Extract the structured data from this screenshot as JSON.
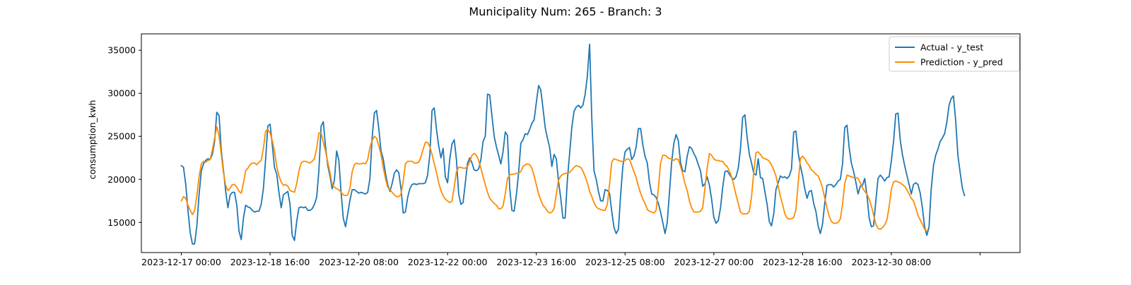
{
  "chart_data": {
    "type": "line",
    "title": "Municipality Num: 265 - Branch: 3",
    "xlabel": "",
    "ylabel": "consumption_kwh",
    "x_start": "2023-12-17 00:00",
    "x_step_hours": 2,
    "x_tick_labels": [
      "2023-12-17 00:00",
      "2023-12-18 16:00",
      "2023-12-20 08:00",
      "2023-12-22 00:00",
      "2023-12-23 16:00",
      "2023-12-25 08:00",
      "2023-12-27 00:00",
      "2023-12-28 16:00",
      "2023-12-30 08:00",
      ""
    ],
    "x_tick_index": [
      0,
      20,
      40,
      60,
      80,
      100,
      120,
      140,
      160,
      180
    ],
    "y_ticks": [
      15000,
      20000,
      25000,
      30000,
      35000
    ],
    "ylim": [
      11500,
      36900
    ],
    "xlim_index": [
      -9,
      189
    ],
    "grid": false,
    "legend_position": "upper right",
    "series": [
      {
        "name": "Actual - y_test",
        "color": "#1f77b4",
        "values": [
          21600,
          21400,
          19400,
          16400,
          13800,
          12500,
          12500,
          14600,
          18200,
          21000,
          21800,
          22200,
          22400,
          22300,
          22900,
          24400,
          27800,
          27400,
          23400,
          21100,
          18600,
          16700,
          18200,
          18500,
          18500,
          17000,
          14000,
          13000,
          15500,
          17000,
          16800,
          16700,
          16400,
          16200,
          16300,
          16300,
          17100,
          18900,
          22400,
          26200,
          26400,
          24000,
          21400,
          20600,
          18500,
          16700,
          18200,
          18400,
          18600,
          17100,
          13500,
          12900,
          15100,
          16700,
          16800,
          16700,
          16800,
          16400,
          16400,
          16600,
          17100,
          17900,
          21000,
          26200,
          26700,
          23800,
          21600,
          20400,
          18900,
          19900,
          23300,
          22200,
          18500,
          15500,
          14500,
          16000,
          17600,
          18800,
          18800,
          18600,
          18400,
          18500,
          18400,
          18300,
          18500,
          20100,
          24800,
          27700,
          28000,
          25900,
          23300,
          22400,
          20700,
          19400,
          18600,
          19500,
          20700,
          21100,
          20800,
          18900,
          16100,
          16200,
          17900,
          18900,
          19400,
          19500,
          19400,
          19500,
          19500,
          19500,
          19600,
          20500,
          22900,
          28000,
          28300,
          25800,
          23900,
          22500,
          23600,
          20300,
          19600,
          22400,
          24100,
          24600,
          22300,
          18300,
          17100,
          17300,
          19600,
          21900,
          22500,
          21900,
          21100,
          21000,
          21200,
          22300,
          24400,
          25000,
          29900,
          29800,
          27400,
          25000,
          23800,
          22800,
          21800,
          23200,
          25500,
          25100,
          19000,
          16400,
          16300,
          18200,
          20700,
          24200,
          24600,
          25300,
          25200,
          25800,
          26500,
          26900,
          28900,
          30900,
          30400,
          28300,
          26000,
          24800,
          23700,
          21500,
          22900,
          22400,
          19800,
          17800,
          15500,
          15500,
          20000,
          23000,
          26000,
          27900,
          28400,
          28600,
          28300,
          28600,
          29900,
          32000,
          35700,
          27100,
          21000,
          20000,
          18600,
          17500,
          17500,
          18800,
          18700,
          18400,
          16300,
          14400,
          13700,
          14200,
          18200,
          21500,
          23200,
          23500,
          23700,
          22300,
          22700,
          23800,
          25900,
          25900,
          24000,
          22700,
          21900,
          19700,
          18300,
          18200,
          17900,
          17200,
          16200,
          15000,
          13700,
          15000,
          18500,
          22000,
          24200,
          25200,
          24500,
          21900,
          21000,
          20900,
          22700,
          23800,
          23600,
          23000,
          22500,
          21700,
          21000,
          19200,
          19500,
          20300,
          19300,
          17700,
          15600,
          14900,
          15200,
          16700,
          19100,
          20900,
          21000,
          20600,
          20200,
          20000,
          20300,
          21300,
          23500,
          27200,
          27500,
          24900,
          22900,
          21900,
          20700,
          20500,
          22400,
          20200,
          20100,
          18600,
          17100,
          15100,
          14600,
          16000,
          18800,
          19600,
          20400,
          20200,
          20300,
          20100,
          20400,
          21200,
          25500,
          25600,
          23100,
          21600,
          20400,
          18900,
          17800,
          18600,
          18700,
          17200,
          16300,
          14600,
          13700,
          14800,
          17300,
          19300,
          19400,
          19400,
          19100,
          19400,
          19800,
          20000,
          21800,
          26000,
          26300,
          23700,
          21900,
          20900,
          19700,
          18300,
          19200,
          19300,
          20100,
          18200,
          15500,
          14500,
          14600,
          17500,
          20100,
          20500,
          20200,
          19800,
          20200,
          20300,
          22100,
          24400,
          27600,
          27700,
          24600,
          22900,
          21600,
          20500,
          19400,
          18300,
          19400,
          19600,
          19400,
          18400,
          16700,
          14500,
          13500,
          14500,
          18900,
          21600,
          22800,
          23500,
          24400,
          24800,
          25300,
          26600,
          28600,
          29400,
          29700,
          26800,
          22800,
          20800,
          19000,
          18100
        ]
      },
      {
        "name": "Prediction - y_pred",
        "color": "#ff8c00",
        "values": [
          17500,
          18000,
          17800,
          17000,
          16400,
          15900,
          16400,
          18100,
          20300,
          21800,
          22100,
          22000,
          22200,
          22300,
          23400,
          24800,
          26100,
          25100,
          22900,
          20800,
          19300,
          18700,
          19000,
          19400,
          19400,
          19100,
          18600,
          18400,
          19600,
          21000,
          21300,
          21700,
          21900,
          21900,
          21700,
          22000,
          22200,
          23600,
          25600,
          25800,
          25400,
          24500,
          23300,
          21500,
          20400,
          19700,
          19300,
          19400,
          19200,
          18700,
          18600,
          18500,
          19500,
          21000,
          21900,
          22100,
          22100,
          22000,
          21900,
          22100,
          22400,
          23600,
          25400,
          25400,
          24300,
          23300,
          22000,
          20800,
          19400,
          19100,
          18900,
          18800,
          18500,
          18200,
          18100,
          18200,
          19000,
          20900,
          21700,
          21900,
          21800,
          21800,
          21900,
          21800,
          22300,
          23700,
          24500,
          25000,
          24800,
          23900,
          22900,
          21400,
          20100,
          19100,
          18800,
          18500,
          18200,
          18000,
          18000,
          18300,
          19800,
          21800,
          22100,
          22100,
          22100,
          21900,
          21900,
          22000,
          22600,
          23500,
          24300,
          24300,
          23800,
          22900,
          21800,
          20800,
          19600,
          18700,
          18100,
          17700,
          17500,
          17300,
          17500,
          19100,
          20900,
          21400,
          21400,
          21300,
          21300,
          21500,
          22100,
          22800,
          23000,
          22800,
          22200,
          21300,
          20300,
          19400,
          18500,
          17800,
          17500,
          17200,
          17000,
          16600,
          16600,
          16900,
          18300,
          20100,
          20500,
          20600,
          20600,
          20700,
          20700,
          20900,
          21500,
          21700,
          21800,
          21700,
          21300,
          20400,
          19400,
          18300,
          17600,
          17000,
          16700,
          16300,
          16100,
          16200,
          16600,
          18300,
          19900,
          20400,
          20600,
          20700,
          20700,
          20800,
          21100,
          21400,
          21600,
          21500,
          21400,
          21000,
          20300,
          19600,
          18600,
          18000,
          17300,
          16800,
          16600,
          16500,
          16400,
          16400,
          17100,
          19400,
          22000,
          22400,
          22300,
          22200,
          22100,
          22100,
          22200,
          22400,
          22300,
          21600,
          20900,
          20200,
          19200,
          18400,
          17700,
          17200,
          16500,
          16300,
          16200,
          16100,
          16400,
          19000,
          21900,
          22800,
          22800,
          22600,
          22400,
          22400,
          22200,
          22400,
          22300,
          21500,
          20600,
          19500,
          18700,
          17500,
          16700,
          16200,
          16200,
          16200,
          16300,
          16700,
          19000,
          21300,
          23000,
          22800,
          22400,
          22200,
          22200,
          22100,
          22100,
          21700,
          21500,
          21000,
          20300,
          19300,
          18200,
          17200,
          16200,
          16000,
          16000,
          16000,
          16300,
          18000,
          20800,
          23100,
          23200,
          22900,
          22500,
          22400,
          22300,
          22100,
          21700,
          21100,
          20400,
          19200,
          18000,
          17100,
          16000,
          15500,
          15400,
          15400,
          15600,
          16500,
          19500,
          22400,
          22700,
          22400,
          21900,
          21600,
          21100,
          20900,
          20600,
          20400,
          19800,
          19000,
          17800,
          16700,
          15700,
          15100,
          14900,
          14900,
          15000,
          15400,
          17100,
          19500,
          20500,
          20400,
          20300,
          20200,
          20200,
          20100,
          19600,
          19000,
          18600,
          18300,
          17700,
          16900,
          15900,
          14800,
          14300,
          14200,
          14400,
          14700,
          15300,
          16800,
          18800,
          19700,
          19800,
          19700,
          19600,
          19400,
          19200,
          18800,
          18300,
          17800,
          17500,
          16700,
          15800,
          15300,
          14800,
          14200,
          14000
        ]
      }
    ]
  }
}
